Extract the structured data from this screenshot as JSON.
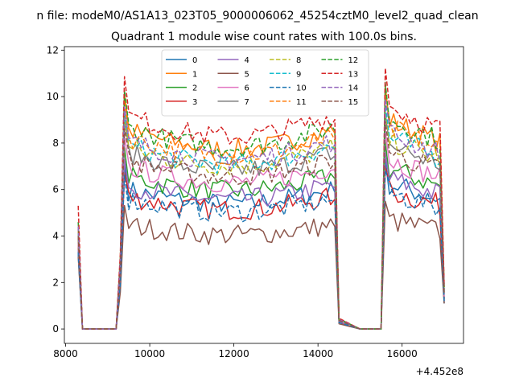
{
  "chart_data": {
    "type": "line",
    "suptitle": "n file: modeM0/AS1A13_023T05_9000006062_45254cztM0_level2_quad_clean",
    "title": "Quadrant 1 module wise count rates with 100.0s bins.",
    "xlabel": "",
    "ylabel": "",
    "offset_text": "+4.452e8",
    "x_offset": 445200000,
    "xlim": [
      7970,
      17460
    ],
    "ylim": [
      -0.62,
      12.15
    ],
    "xticks": [
      8000,
      10000,
      12000,
      14000,
      16000
    ],
    "yticks": [
      0,
      2,
      4,
      6,
      8,
      10,
      12
    ],
    "grid": false,
    "legend": {
      "placement": "top-center",
      "columns": 4
    },
    "series": [
      {
        "name": "0",
        "color": "#1f77b4",
        "dash": "solid",
        "level": 6.0,
        "start": 3.2,
        "end": 1.1
      },
      {
        "name": "1",
        "color": "#ff7f0e",
        "dash": "solid",
        "level": 8.6,
        "start": 3.8,
        "end": 1.8
      },
      {
        "name": "2",
        "color": "#2ca02c",
        "dash": "solid",
        "level": 6.6,
        "start": 3.5,
        "end": 1.3
      },
      {
        "name": "3",
        "color": "#d62728",
        "dash": "solid",
        "level": 5.7,
        "start": 3.6,
        "end": 1.3
      },
      {
        "name": "4",
        "color": "#9467bd",
        "dash": "solid",
        "level": 6.2,
        "start": 3.4,
        "end": 1.2
      },
      {
        "name": "5",
        "color": "#8c564b",
        "dash": "solid",
        "level": 4.5,
        "start": 3.1,
        "end": 1.1
      },
      {
        "name": "6",
        "color": "#e377c2",
        "dash": "solid",
        "level": 7.0,
        "start": 3.7,
        "end": 1.4
      },
      {
        "name": "7",
        "color": "#7f7f7f",
        "dash": "solid",
        "level": 7.6,
        "start": 3.9,
        "end": 1.5
      },
      {
        "name": "8",
        "color": "#bcbd22",
        "dash": "dashed",
        "level": 7.8,
        "start": 4.1,
        "end": 1.6
      },
      {
        "name": "9",
        "color": "#17becf",
        "dash": "dashed",
        "level": 7.9,
        "start": 4.2,
        "end": 1.6
      },
      {
        "name": "10",
        "color": "#1f77b4",
        "dash": "dashed",
        "level": 5.6,
        "start": 3.3,
        "end": 1.2
      },
      {
        "name": "11",
        "color": "#ff7f0e",
        "dash": "dashed",
        "level": 8.3,
        "start": 4.3,
        "end": 1.7
      },
      {
        "name": "12",
        "color": "#2ca02c",
        "dash": "dashed",
        "level": 8.7,
        "start": 4.6,
        "end": 1.8
      },
      {
        "name": "13",
        "color": "#d62728",
        "dash": "dashed",
        "level": 9.2,
        "start": 5.3,
        "end": 1.9
      },
      {
        "name": "14",
        "color": "#9467bd",
        "dash": "dashed",
        "level": 8.1,
        "start": 4.4,
        "end": 1.7
      },
      {
        "name": "15",
        "color": "#8c564b",
        "dash": "dashed",
        "level": 7.3,
        "start": 4.0,
        "end": 1.5
      }
    ],
    "time_profile": {
      "on_intervals": [
        [
          8300,
          8300
        ],
        [
          9300,
          14500
        ],
        [
          15500,
          17000
        ]
      ],
      "off_value": 0,
      "bin_width": 100
    }
  }
}
